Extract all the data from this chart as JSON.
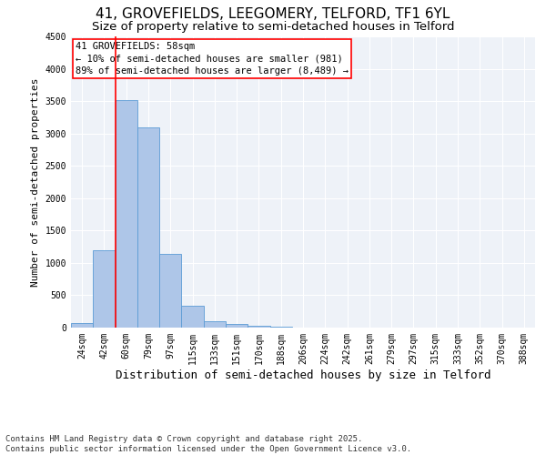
{
  "title1": "41, GROVEFIELDS, LEEGOMERY, TELFORD, TF1 6YL",
  "title2": "Size of property relative to semi-detached houses in Telford",
  "xlabel": "Distribution of semi-detached houses by size in Telford",
  "ylabel": "Number of semi-detached properties",
  "bar_labels": [
    "24sqm",
    "42sqm",
    "60sqm",
    "79sqm",
    "97sqm",
    "115sqm",
    "133sqm",
    "151sqm",
    "170sqm",
    "188sqm",
    "206sqm",
    "224sqm",
    "242sqm",
    "261sqm",
    "279sqm",
    "297sqm",
    "315sqm",
    "333sqm",
    "352sqm",
    "370sqm",
    "388sqm"
  ],
  "bar_values": [
    75,
    1200,
    3520,
    3100,
    1140,
    340,
    100,
    55,
    25,
    10,
    5,
    2,
    1,
    0,
    0,
    0,
    0,
    0,
    0,
    0,
    0
  ],
  "bar_color": "#aec6e8",
  "bar_edge_color": "#5b9bd5",
  "annotation_title": "41 GROVEFIELDS: 58sqm",
  "annotation_line1": "← 10% of semi-detached houses are smaller (981)",
  "annotation_line2": "89% of semi-detached houses are larger (8,489) →",
  "ylim": [
    0,
    4500
  ],
  "yticks": [
    0,
    500,
    1000,
    1500,
    2000,
    2500,
    3000,
    3500,
    4000,
    4500
  ],
  "bg_color": "#eef2f8",
  "grid_color": "#ffffff",
  "footnote": "Contains HM Land Registry data © Crown copyright and database right 2025.\nContains public sector information licensed under the Open Government Licence v3.0.",
  "title1_fontsize": 11,
  "title2_fontsize": 9.5,
  "xlabel_fontsize": 9,
  "ylabel_fontsize": 8,
  "tick_fontsize": 7,
  "annotation_fontsize": 7.5,
  "footnote_fontsize": 6.5
}
